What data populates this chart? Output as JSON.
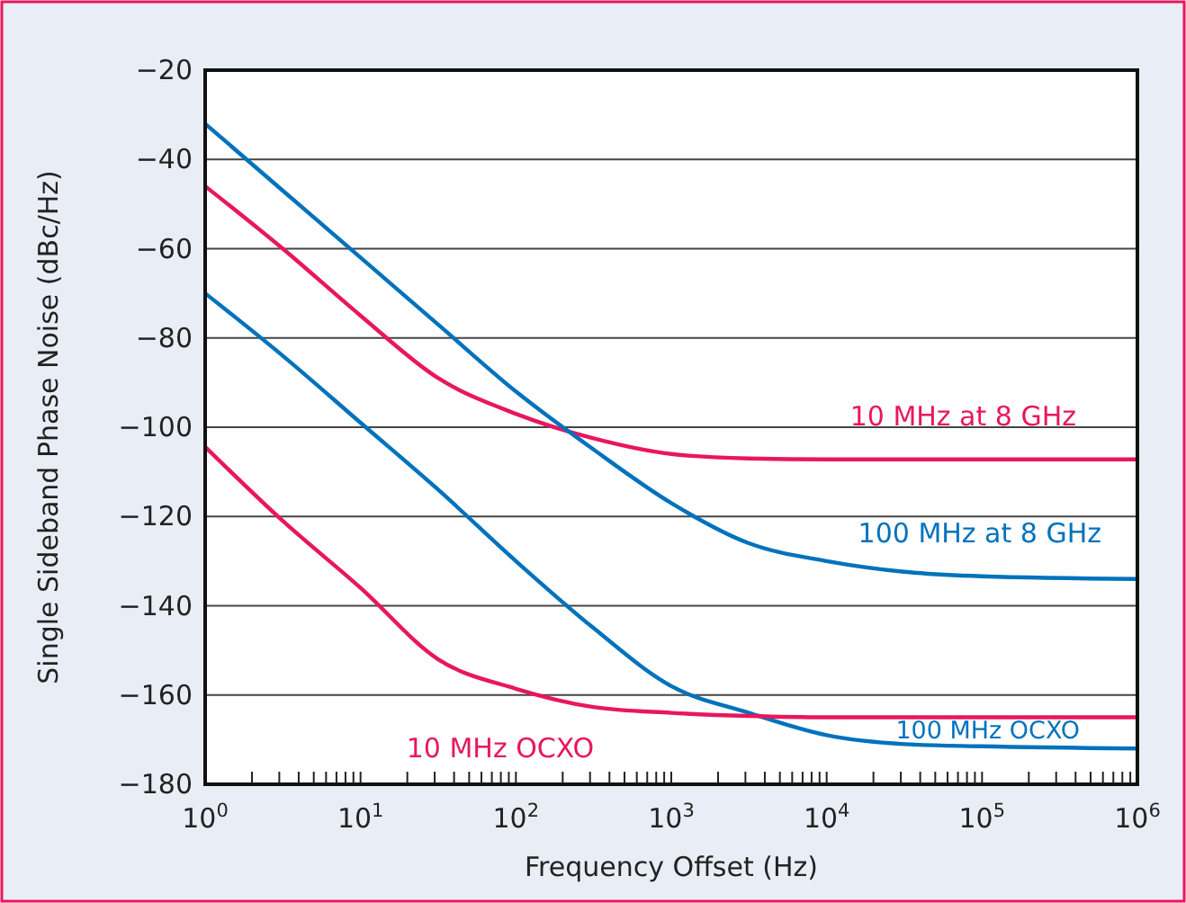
{
  "chart_data": {
    "type": "line",
    "xlabel": "Frequency Offset (Hz)",
    "ylabel": "Single Sideband Phase Noise (dBc/Hz)",
    "log": "x",
    "grid": "y",
    "legend": false,
    "line_style": "solid",
    "marker": "none",
    "x": [
      1,
      3.16,
      10,
      31.6,
      100,
      316,
      1000,
      3160,
      10000,
      31600,
      100000,
      1000000
    ],
    "xlim": [
      1,
      1000000
    ],
    "ylim": [
      -180,
      -20
    ],
    "yticks": [
      -180,
      -160,
      -140,
      -120,
      -100,
      -80,
      -60,
      -40,
      -20
    ],
    "xticks": [
      {
        "value": 1,
        "label": "10$^{0}$"
      },
      {
        "value": 2,
        "label": null
      },
      {
        "value": 3,
        "label": null
      },
      {
        "value": 4,
        "label": null
      },
      {
        "value": 5,
        "label": null
      },
      {
        "value": 6,
        "label": null
      },
      {
        "value": 7,
        "label": null
      },
      {
        "value": 8,
        "label": null
      },
      {
        "value": 9,
        "label": null
      },
      {
        "value": 10,
        "label": "10$^{1}$"
      },
      {
        "value": 20,
        "label": null
      },
      {
        "value": 30,
        "label": null
      },
      {
        "value": 40,
        "label": null
      },
      {
        "value": 50,
        "label": null
      },
      {
        "value": 60,
        "label": null
      },
      {
        "value": 70,
        "label": null
      },
      {
        "value": 80,
        "label": null
      },
      {
        "value": 90,
        "label": null
      },
      {
        "value": 100,
        "label": "10$^{2}$"
      },
      {
        "value": 200,
        "label": null
      },
      {
        "value": 300,
        "label": null
      },
      {
        "value": 400,
        "label": null
      },
      {
        "value": 500,
        "label": null
      },
      {
        "value": 600,
        "label": null
      },
      {
        "value": 700,
        "label": null
      },
      {
        "value": 800,
        "label": null
      },
      {
        "value": 900,
        "label": null
      },
      {
        "value": 1000,
        "label": "10$^{3}$"
      },
      {
        "value": 2000,
        "label": null
      },
      {
        "value": 3000,
        "label": null
      },
      {
        "value": 4000,
        "label": null
      },
      {
        "value": 5000,
        "label": null
      },
      {
        "value": 6000,
        "label": null
      },
      {
        "value": 7000,
        "label": null
      },
      {
        "value": 8000,
        "label": null
      },
      {
        "value": 9000,
        "label": null
      },
      {
        "value": 10000,
        "label": "10$^{4}$"
      },
      {
        "value": 20000,
        "label": null
      },
      {
        "value": 30000,
        "label": null
      },
      {
        "value": 40000,
        "label": null
      },
      {
        "value": 50000,
        "label": null
      },
      {
        "value": 60000,
        "label": null
      },
      {
        "value": 70000,
        "label": null
      },
      {
        "value": 80000,
        "label": null
      },
      {
        "value": 90000,
        "label": null
      },
      {
        "value": 100000,
        "label": "10$^{5}$"
      },
      {
        "value": 200000,
        "label": null
      },
      {
        "value": 300000,
        "label": null
      },
      {
        "value": 400000,
        "label": null
      },
      {
        "value": 500000,
        "label": null
      },
      {
        "value": 600000,
        "label": null
      },
      {
        "value": 700000,
        "label": null
      },
      {
        "value": 800000,
        "label": null
      },
      {
        "value": 900000,
        "label": null
      },
      {
        "value": 1000000,
        "label": "10$^{6}$"
      }
    ],
    "series": [
      {
        "name": "10 MHz at 8 GHz",
        "color": "#e8175d",
        "values": [
          -46,
          -60,
          -75,
          -89,
          -97,
          -102.5,
          -106,
          -107,
          -107.2,
          -107.2,
          -107.2,
          -107.2
        ]
      },
      {
        "name": "100 MHz at 8 GHz",
        "color": "#0072bc",
        "values": [
          -32,
          -47,
          -62,
          -77,
          -92,
          -105,
          -117,
          -126,
          -130,
          -132.4,
          -133.4,
          -134
        ]
      },
      {
        "name": "100 MHz OCXO",
        "color": "#0072bc",
        "values": [
          -70,
          -84,
          -99,
          -114,
          -130,
          -145,
          -158,
          -164,
          -169,
          -171,
          -171.5,
          -172
        ]
      },
      {
        "name": "10 MHz OCXO",
        "color": "#e8175d",
        "values": [
          -104.4,
          -121,
          -136,
          -152,
          -158.6,
          -162.7,
          -164,
          -164.7,
          -165,
          -165,
          -165,
          -165
        ]
      }
    ]
  }
}
